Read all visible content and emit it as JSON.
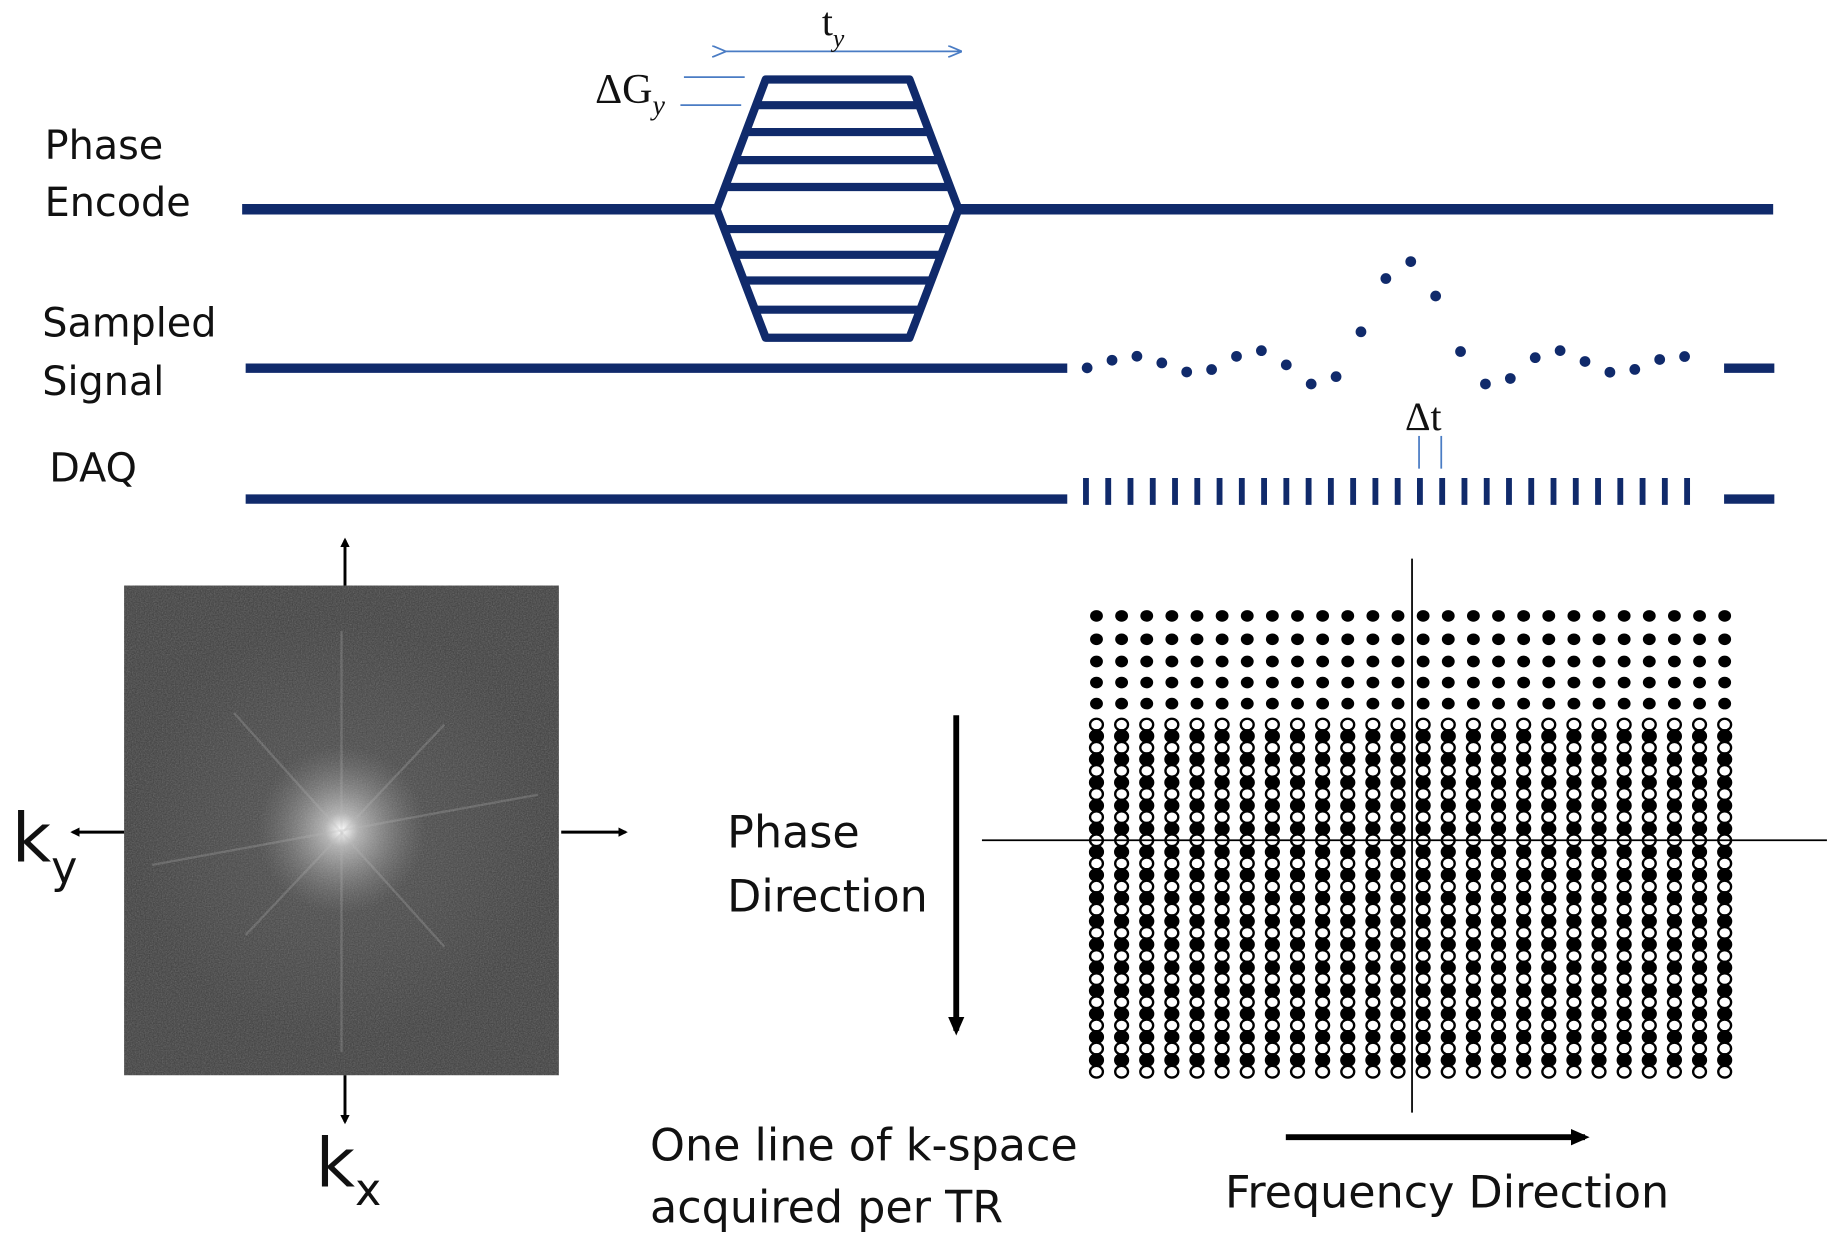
{
  "pulse_sequence": {
    "phase_encode": [
      "Phase",
      "Encode"
    ],
    "sampled_signal": [
      "Sampled",
      "Signal"
    ],
    "daq": "DAQ",
    "delta_g": {
      "main": "ΔG",
      "sub": "y"
    },
    "t_y": {
      "main": "t",
      "sub": "y"
    },
    "delta_t": "Δt"
  },
  "kspace_image": {
    "ky": {
      "main": "k",
      "sub": "y"
    },
    "kx": {
      "main": "k",
      "sub": "x"
    }
  },
  "sampling_grid": {
    "phase_direction": [
      "Phase",
      "Direction"
    ],
    "caption": [
      "One line of k-space",
      "acquired per TR"
    ],
    "frequency_direction": "Frequency Direction"
  }
}
